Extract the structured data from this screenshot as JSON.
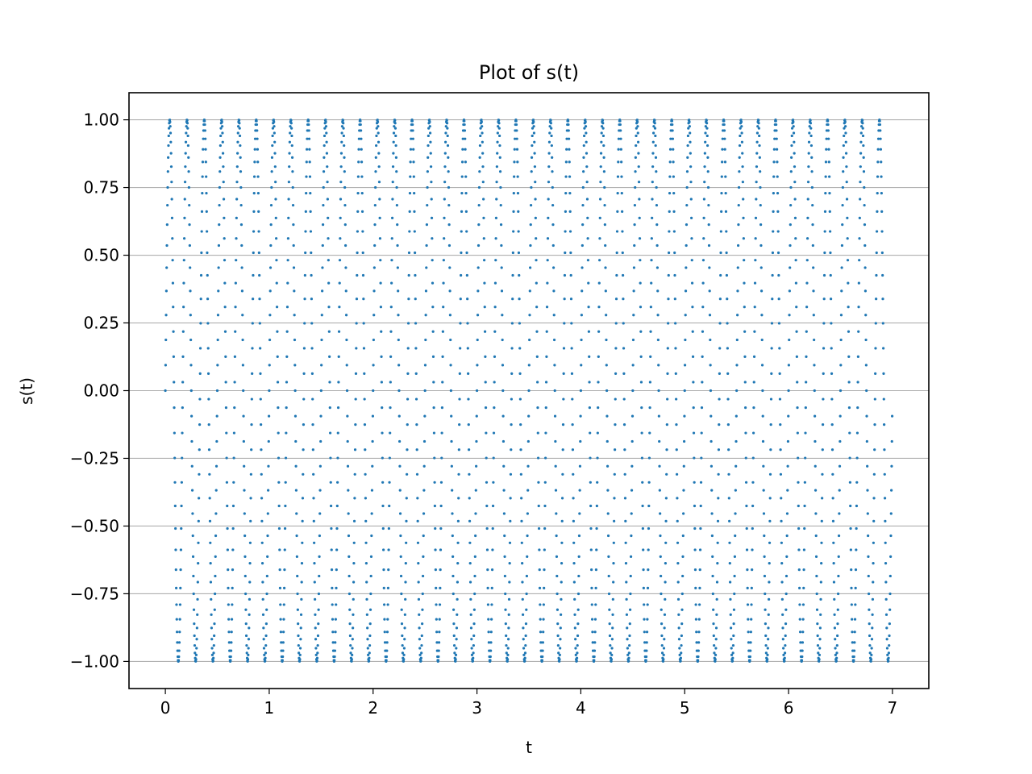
{
  "chart_data": {
    "type": "scatter",
    "title": "Plot of s(t)",
    "xlabel": "t",
    "ylabel": "s(t)",
    "xlim": [
      -0.35,
      7.35
    ],
    "ylim": [
      -1.1,
      1.1
    ],
    "x_ticks": [
      0,
      1,
      2,
      3,
      4,
      5,
      6,
      7
    ],
    "x_tick_labels": [
      "0",
      "1",
      "2",
      "3",
      "4",
      "5",
      "6",
      "7"
    ],
    "y_ticks": [
      1.0,
      0.75,
      0.5,
      0.25,
      0.0,
      -0.25,
      -0.5,
      -0.75,
      -1.0
    ],
    "y_tick_labels": [
      "1.00",
      "0.75",
      "0.50",
      "0.25",
      "0.00",
      "−0.25",
      "−0.50",
      "−0.75",
      "−1.00"
    ],
    "grid": "horizontal",
    "series": [
      {
        "color": "#1f77b4",
        "function": "sin(2*pi*6*t)",
        "t_start": 0,
        "t_end": 7,
        "samples": 2800,
        "values_shown": "s(t) oscillates between -1 and 1 with about 6 cycles per unit of t"
      }
    ]
  }
}
